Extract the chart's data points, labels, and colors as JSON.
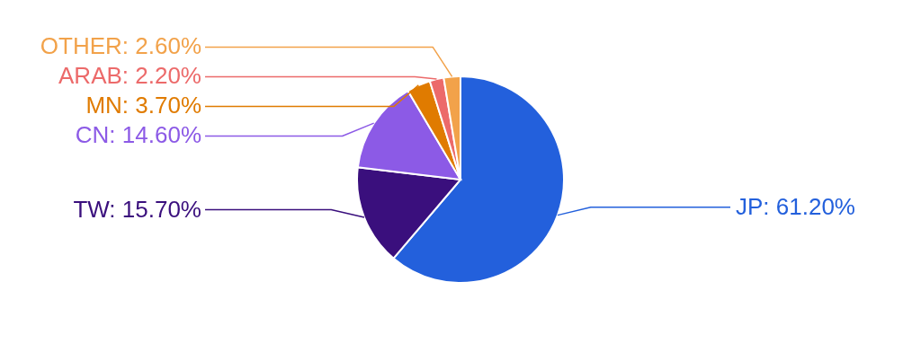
{
  "chart_data": {
    "type": "pie",
    "categories": [
      "JP",
      "TW",
      "CN",
      "MN",
      "ARAB",
      "OTHER"
    ],
    "values": [
      61.2,
      15.7,
      14.6,
      3.7,
      2.2,
      2.6
    ],
    "value_labels": [
      "61.20%",
      "15.70%",
      "14.60%",
      "3.70%",
      "2.20%",
      "2.60%"
    ],
    "colors": [
      "#2360dc",
      "#3a0f7d",
      "#8c5ae6",
      "#e07b00",
      "#ec6a6a",
      "#f2a24a"
    ]
  }
}
